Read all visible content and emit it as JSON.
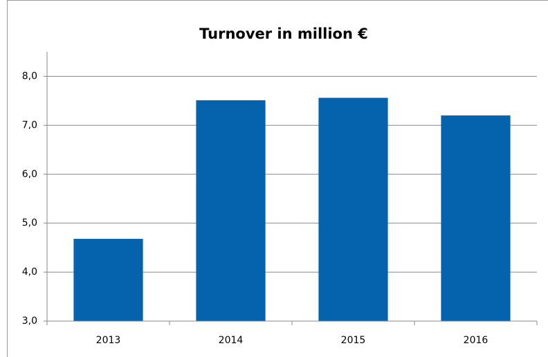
{
  "chart_data": {
    "type": "bar",
    "title": "Turnover in million €",
    "categories": [
      "2013",
      "2014",
      "2015",
      "2016"
    ],
    "values": [
      4.68,
      7.51,
      7.56,
      7.2
    ],
    "color": "#0563ae",
    "ylim": [
      3,
      8.5
    ],
    "yticks": [
      {
        "value": 3,
        "label": "3,0"
      },
      {
        "value": 4,
        "label": "4,0"
      },
      {
        "value": 5,
        "label": "5,0"
      },
      {
        "value": 6,
        "label": "6,0"
      },
      {
        "value": 7,
        "label": "7,0"
      },
      {
        "value": 8,
        "label": "8,0"
      }
    ],
    "grid": true
  }
}
